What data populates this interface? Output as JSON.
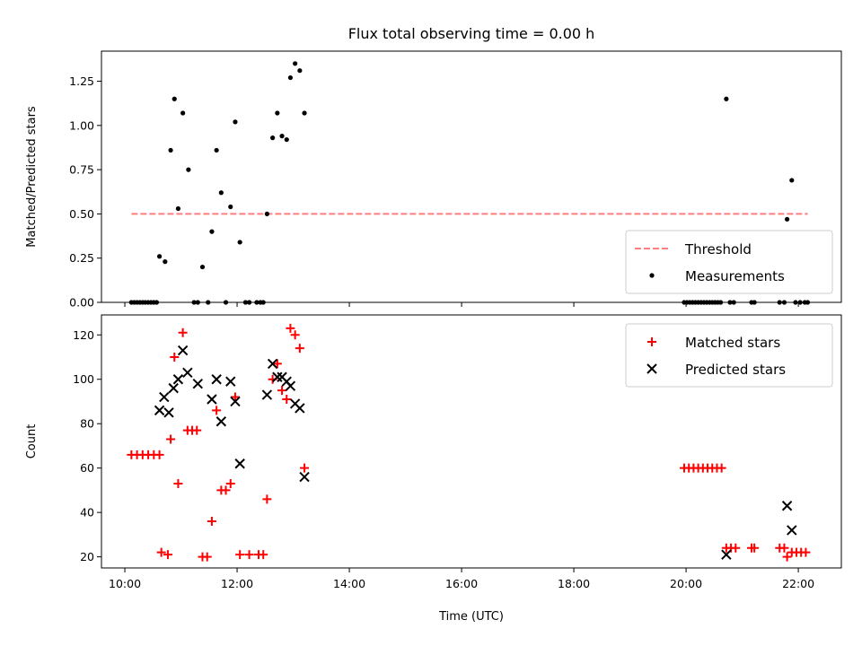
{
  "chart_data": [
    {
      "type": "scatter",
      "title": "Flux total observing time = 0.00 h",
      "xlabel": "",
      "ylabel": "Matched/Predicted stars",
      "xlim": [
        "09:35",
        "22:46"
      ],
      "ylim": [
        0,
        1.42
      ],
      "y_ticks": [
        0.0,
        0.25,
        0.5,
        0.75,
        1.0,
        1.25
      ],
      "y_tick_labels": [
        "0.00",
        "0.25",
        "0.50",
        "0.75",
        "1.00",
        "1.25"
      ],
      "grid": false,
      "legend": "lower-right",
      "threshold": {
        "name": "Threshold",
        "value": 0.5,
        "x_range": [
          "10:07",
          "22:10"
        ],
        "color": "#ff7f7f",
        "style": "dashed"
      },
      "series": [
        {
          "name": "Measurements",
          "color": "#000000",
          "marker": "dot",
          "points": [
            [
              "10:07",
              0.0
            ],
            [
              "10:10",
              0.0
            ],
            [
              "10:13",
              0.0
            ],
            [
              "10:16",
              0.0
            ],
            [
              "10:19",
              0.0
            ],
            [
              "10:22",
              0.0
            ],
            [
              "10:25",
              0.0
            ],
            [
              "10:28",
              0.0
            ],
            [
              "10:31",
              0.0
            ],
            [
              "10:34",
              0.0
            ],
            [
              "10:37",
              0.26
            ],
            [
              "10:43",
              0.23
            ],
            [
              "10:49",
              0.86
            ],
            [
              "10:53",
              1.15
            ],
            [
              "10:57",
              0.53
            ],
            [
              "11:02",
              1.07
            ],
            [
              "11:08",
              0.75
            ],
            [
              "11:14",
              0.0
            ],
            [
              "11:18",
              0.0
            ],
            [
              "11:23",
              0.2
            ],
            [
              "11:29",
              0.0
            ],
            [
              "11:33",
              0.4
            ],
            [
              "11:38",
              0.86
            ],
            [
              "11:43",
              0.62
            ],
            [
              "11:48",
              0.0
            ],
            [
              "11:53",
              0.54
            ],
            [
              "11:58",
              1.02
            ],
            [
              "12:03",
              0.34
            ],
            [
              "12:09",
              0.0
            ],
            [
              "12:13",
              0.0
            ],
            [
              "12:21",
              0.0
            ],
            [
              "12:25",
              0.0
            ],
            [
              "12:28",
              0.0
            ],
            [
              "12:32",
              0.5
            ],
            [
              "12:38",
              0.93
            ],
            [
              "12:43",
              1.07
            ],
            [
              "12:48",
              0.94
            ],
            [
              "12:53",
              0.92
            ],
            [
              "12:57",
              1.27
            ],
            [
              "13:02",
              1.35
            ],
            [
              "13:07",
              1.31
            ],
            [
              "13:12",
              1.07
            ],
            [
              "19:58",
              0.0
            ],
            [
              "20:01",
              0.0
            ],
            [
              "20:04",
              0.0
            ],
            [
              "20:07",
              0.0
            ],
            [
              "20:10",
              0.0
            ],
            [
              "20:13",
              0.0
            ],
            [
              "20:16",
              0.0
            ],
            [
              "20:19",
              0.0
            ],
            [
              "20:22",
              0.0
            ],
            [
              "20:25",
              0.0
            ],
            [
              "20:28",
              0.0
            ],
            [
              "20:31",
              0.0
            ],
            [
              "20:34",
              0.0
            ],
            [
              "20:37",
              0.0
            ],
            [
              "20:43",
              1.15
            ],
            [
              "20:47",
              0.0
            ],
            [
              "20:51",
              0.0
            ],
            [
              "21:10",
              0.0
            ],
            [
              "21:13",
              0.0
            ],
            [
              "21:40",
              0.0
            ],
            [
              "21:45",
              0.0
            ],
            [
              "21:48",
              0.47
            ],
            [
              "21:53",
              0.69
            ],
            [
              "21:57",
              0.0
            ],
            [
              "22:02",
              0.0
            ],
            [
              "22:07",
              0.0
            ],
            [
              "22:10",
              0.0
            ]
          ]
        }
      ]
    },
    {
      "type": "scatter",
      "title": "",
      "xlabel": "Time (UTC)",
      "ylabel": "Count",
      "xlim": [
        "09:35",
        "22:46"
      ],
      "ylim": [
        15,
        129
      ],
      "x_ticks": [
        "10:00",
        "12:00",
        "14:00",
        "16:00",
        "18:00",
        "20:00",
        "22:00"
      ],
      "y_ticks": [
        20,
        40,
        60,
        80,
        100,
        120
      ],
      "grid": false,
      "legend": "upper-right",
      "series": [
        {
          "name": "Matched stars",
          "color": "#ff0000",
          "marker": "plus",
          "points": [
            [
              "10:07",
              66
            ],
            [
              "10:13",
              66
            ],
            [
              "10:19",
              66
            ],
            [
              "10:25",
              66
            ],
            [
              "10:31",
              66
            ],
            [
              "10:37",
              66
            ],
            [
              "10:39",
              22
            ],
            [
              "10:46",
              21
            ],
            [
              "10:49",
              73
            ],
            [
              "10:53",
              110
            ],
            [
              "10:57",
              53
            ],
            [
              "11:02",
              121
            ],
            [
              "11:07",
              77
            ],
            [
              "11:12",
              77
            ],
            [
              "11:17",
              77
            ],
            [
              "11:23",
              20
            ],
            [
              "11:28",
              20
            ],
            [
              "11:33",
              36
            ],
            [
              "11:38",
              86
            ],
            [
              "11:43",
              50
            ],
            [
              "11:48",
              50
            ],
            [
              "11:53",
              53
            ],
            [
              "11:58",
              92
            ],
            [
              "12:03",
              21
            ],
            [
              "12:13",
              21
            ],
            [
              "12:23",
              21
            ],
            [
              "12:28",
              21
            ],
            [
              "12:32",
              46
            ],
            [
              "12:38",
              100
            ],
            [
              "12:43",
              107
            ],
            [
              "12:48",
              95
            ],
            [
              "12:53",
              91
            ],
            [
              "12:57",
              123
            ],
            [
              "13:02",
              120
            ],
            [
              "13:07",
              114
            ],
            [
              "13:12",
              60
            ],
            [
              "19:58",
              60
            ],
            [
              "20:03",
              60
            ],
            [
              "20:08",
              60
            ],
            [
              "20:13",
              60
            ],
            [
              "20:18",
              60
            ],
            [
              "20:23",
              60
            ],
            [
              "20:28",
              60
            ],
            [
              "20:33",
              60
            ],
            [
              "20:38",
              60
            ],
            [
              "20:43",
              24
            ],
            [
              "20:48",
              24
            ],
            [
              "20:53",
              24
            ],
            [
              "21:10",
              24
            ],
            [
              "21:13",
              24
            ],
            [
              "21:40",
              24
            ],
            [
              "21:45",
              24
            ],
            [
              "21:48",
              20
            ],
            [
              "21:53",
              22
            ],
            [
              "21:58",
              22
            ],
            [
              "22:03",
              22
            ],
            [
              "22:08",
              22
            ]
          ]
        },
        {
          "name": "Predicted stars",
          "color": "#000000",
          "marker": "x",
          "points": [
            [
              "10:37",
              86
            ],
            [
              "10:42",
              92
            ],
            [
              "10:47",
              85
            ],
            [
              "10:52",
              96
            ],
            [
              "10:57",
              100
            ],
            [
              "11:02",
              113
            ],
            [
              "11:07",
              103
            ],
            [
              "11:18",
              98
            ],
            [
              "11:33",
              91
            ],
            [
              "11:38",
              100
            ],
            [
              "11:43",
              81
            ],
            [
              "11:53",
              99
            ],
            [
              "11:58",
              90
            ],
            [
              "12:03",
              62
            ],
            [
              "12:32",
              93
            ],
            [
              "12:38",
              107
            ],
            [
              "12:43",
              101
            ],
            [
              "12:48",
              101
            ],
            [
              "12:53",
              99
            ],
            [
              "12:57",
              97
            ],
            [
              "13:02",
              89
            ],
            [
              "13:07",
              87
            ],
            [
              "13:12",
              56
            ],
            [
              "20:43",
              21
            ],
            [
              "21:48",
              43
            ],
            [
              "21:53",
              32
            ]
          ]
        }
      ]
    }
  ]
}
